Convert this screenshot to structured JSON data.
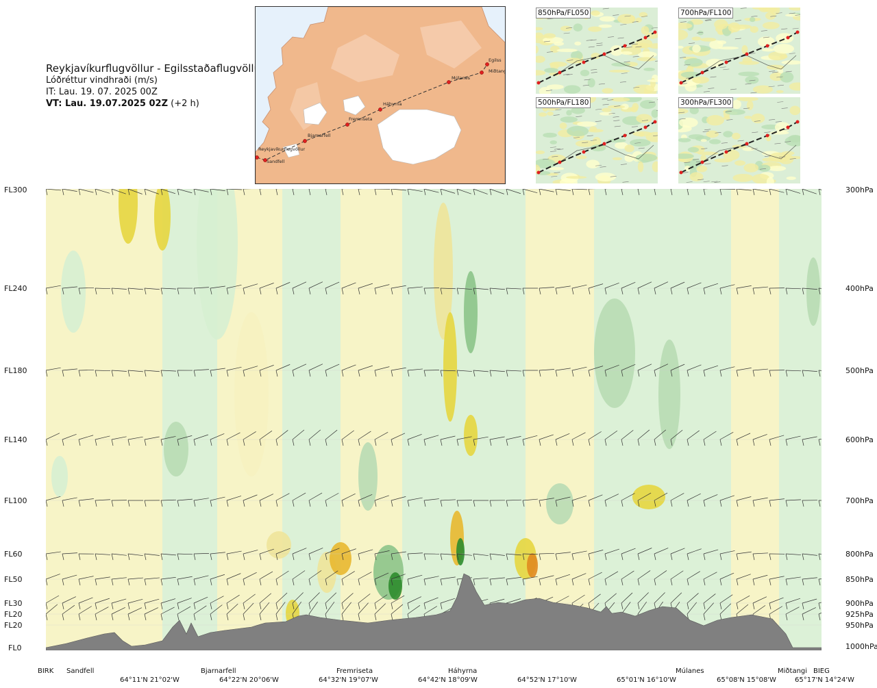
{
  "header": {
    "route_title": "Reykjavíkurflugvöllur - Egilsstaðaflugvöllur",
    "variable": "Lóðréttur vindhraði (m/s)",
    "issue_time": "IT: Lau. 19. 07. 2025 00Z",
    "valid_label": "VT: Lau. 19.07.2025 02Z",
    "valid_offset": "(+2 h)"
  },
  "route_map": {
    "stations": [
      "Reykjavíkurflugvöllur",
      "Sandfell",
      "Bjarnarfell",
      "Fremriseta",
      "Háhyrna",
      "Múlanes",
      "Egilss",
      "Miðtangi"
    ]
  },
  "level_maps": [
    {
      "label": "850hPa/FL050"
    },
    {
      "label": "700hPa/FL100"
    },
    {
      "label": "500hPa/FL180"
    },
    {
      "label": "300hPa/FL300"
    }
  ],
  "chart_data": {
    "type": "heatmap",
    "variable": "Lóðréttur vindhraði (m/s)",
    "y_levels_left": [
      "FL300",
      "FL240",
      "FL180",
      "FL140",
      "FL100",
      "FL60",
      "FL50",
      "FL30",
      "FL20",
      "FL20",
      "FL0"
    ],
    "y_levels_right": [
      "300hPa",
      "400hPa",
      "500hPa",
      "600hPa",
      "700hPa",
      "800hPa",
      "850hPa",
      "900hPa",
      "925hPa",
      "950hPa",
      "1000hPa"
    ],
    "pressure_levels_hpa": [
      300,
      400,
      500,
      600,
      700,
      800,
      850,
      900,
      925,
      950,
      1000
    ],
    "waypoints": [
      "BIRK",
      "Sandfell",
      "Bjarnarfell",
      "Fremriseta",
      "Háhyrna",
      "Múlanes",
      "Miðtangi",
      "BIEG"
    ],
    "coordinates": [
      "64°11'N 21°02'W",
      "64°22'N 20°06'W",
      "64°32'N 19°07'W",
      "64°42'N 18°09'W",
      "64°52'N 17°10'W",
      "65°01'N 16°10'W",
      "65°08'N 15°08'W",
      "65°17'N 14°24'W"
    ],
    "color_scale": {
      "downward": [
        "#f6f2c0",
        "#eee49a",
        "#e6d640",
        "#e8b830",
        "#e08a20"
      ],
      "neutral": "#ffffee",
      "upward": [
        "#d6efd2",
        "#b8dcb4",
        "#8cc48a",
        "#5aa85a",
        "#2e8c2e"
      ]
    },
    "terrain_color": "#808080"
  }
}
